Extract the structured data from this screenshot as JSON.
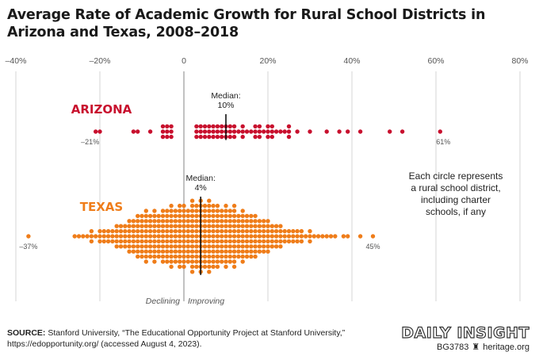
{
  "title": "Average Rate of Academic Growth for Rural School Districts in Arizona and Texas, 2008–2018",
  "chart_data": {
    "type": "scatter",
    "title": "Average Rate of Academic Growth for Rural School Districts in Arizona and Texas, 2008–2018",
    "xlim": [
      -40,
      80
    ],
    "tick_labels": [
      "–40%",
      "–20%",
      "0",
      "20%",
      "40%",
      "60%",
      "80%"
    ],
    "tick_values": [
      -40,
      -20,
      0,
      20,
      40,
      60,
      80
    ],
    "grid": true,
    "colors": {
      "arizona": "#c8102e",
      "texas": "#ef7d1a",
      "grid": "#cccccc",
      "axis": "#999999"
    },
    "zero_label_left": "Declining",
    "zero_label_right": "Improving",
    "note": "Each circle represents a rural school district, including charter schools, if any",
    "series": [
      {
        "name": "ARIZONA",
        "median_label": "Median:",
        "median_value_label": "10%",
        "median": 10,
        "min_label": "–21%",
        "max_label": "61%",
        "min": -21,
        "max": 61,
        "columns": [
          [
            -21,
            1
          ],
          [
            -20,
            1
          ],
          [
            -12,
            1
          ],
          [
            -11,
            1
          ],
          [
            -8,
            1
          ],
          [
            -5,
            3
          ],
          [
            -4,
            3
          ],
          [
            -3,
            3
          ],
          [
            3,
            3
          ],
          [
            4,
            3
          ],
          [
            5,
            3
          ],
          [
            6,
            3
          ],
          [
            7,
            3
          ],
          [
            8,
            3
          ],
          [
            9,
            3
          ],
          [
            10,
            3
          ],
          [
            11,
            3
          ],
          [
            12,
            3
          ],
          [
            13,
            1
          ],
          [
            14,
            3
          ],
          [
            15,
            1
          ],
          [
            16,
            1
          ],
          [
            17,
            3
          ],
          [
            18,
            3
          ],
          [
            19,
            1
          ],
          [
            20,
            3
          ],
          [
            21,
            3
          ],
          [
            22,
            1
          ],
          [
            23,
            1
          ],
          [
            24,
            1
          ],
          [
            25,
            3
          ],
          [
            27,
            1
          ],
          [
            30,
            1
          ],
          [
            34,
            1
          ],
          [
            37,
            1
          ],
          [
            39,
            1
          ],
          [
            42,
            1
          ],
          [
            49,
            1
          ],
          [
            52,
            1
          ],
          [
            61,
            1
          ]
        ]
      },
      {
        "name": "TEXAS",
        "median_label": "Median:",
        "median_value_label": "4%",
        "median": 4,
        "min_label": "–37%",
        "max_label": "45%",
        "min": -37,
        "max": 45,
        "columns": [
          [
            -37,
            1
          ],
          [
            -26,
            1
          ],
          [
            -25,
            1
          ],
          [
            -24,
            1
          ],
          [
            -23,
            1
          ],
          [
            -22,
            3
          ],
          [
            -21,
            1
          ],
          [
            -20,
            3
          ],
          [
            -19,
            3
          ],
          [
            -18,
            3
          ],
          [
            -17,
            3
          ],
          [
            -16,
            5
          ],
          [
            -15,
            5
          ],
          [
            -14,
            5
          ],
          [
            -13,
            7
          ],
          [
            -12,
            7
          ],
          [
            -11,
            9
          ],
          [
            -10,
            9
          ],
          [
            -9,
            11
          ],
          [
            -8,
            9
          ],
          [
            -7,
            11
          ],
          [
            -6,
            9
          ],
          [
            -5,
            11
          ],
          [
            -4,
            11
          ],
          [
            -3,
            13
          ],
          [
            -2,
            11
          ],
          [
            -1,
            13
          ],
          [
            0,
            13
          ],
          [
            1,
            11
          ],
          [
            2,
            15
          ],
          [
            3,
            13
          ],
          [
            4,
            15
          ],
          [
            5,
            13
          ],
          [
            6,
            15
          ],
          [
            7,
            13
          ],
          [
            8,
            13
          ],
          [
            9,
            11
          ],
          [
            10,
            13
          ],
          [
            11,
            11
          ],
          [
            12,
            13
          ],
          [
            13,
            9
          ],
          [
            14,
            11
          ],
          [
            15,
            9
          ],
          [
            16,
            9
          ],
          [
            17,
            9
          ],
          [
            18,
            7
          ],
          [
            19,
            7
          ],
          [
            20,
            7
          ],
          [
            21,
            5
          ],
          [
            22,
            5
          ],
          [
            23,
            5
          ],
          [
            24,
            3
          ],
          [
            25,
            3
          ],
          [
            26,
            3
          ],
          [
            27,
            3
          ],
          [
            28,
            3
          ],
          [
            29,
            1
          ],
          [
            30,
            3
          ],
          [
            31,
            1
          ],
          [
            32,
            1
          ],
          [
            33,
            1
          ],
          [
            34,
            1
          ],
          [
            35,
            1
          ],
          [
            36,
            1
          ],
          [
            38,
            1
          ],
          [
            39,
            1
          ],
          [
            42,
            1
          ],
          [
            45,
            1
          ]
        ]
      }
    ]
  },
  "footer": {
    "source_label": "SOURCE:",
    "source_text": "Stanford University, “The Educational Opportunity Project at Stanford University,” https://edopportunity.org/ (accessed August 4, 2023).",
    "brand": "DAILY INSIGHT",
    "code": "BG3783",
    "site": "heritage.org"
  }
}
